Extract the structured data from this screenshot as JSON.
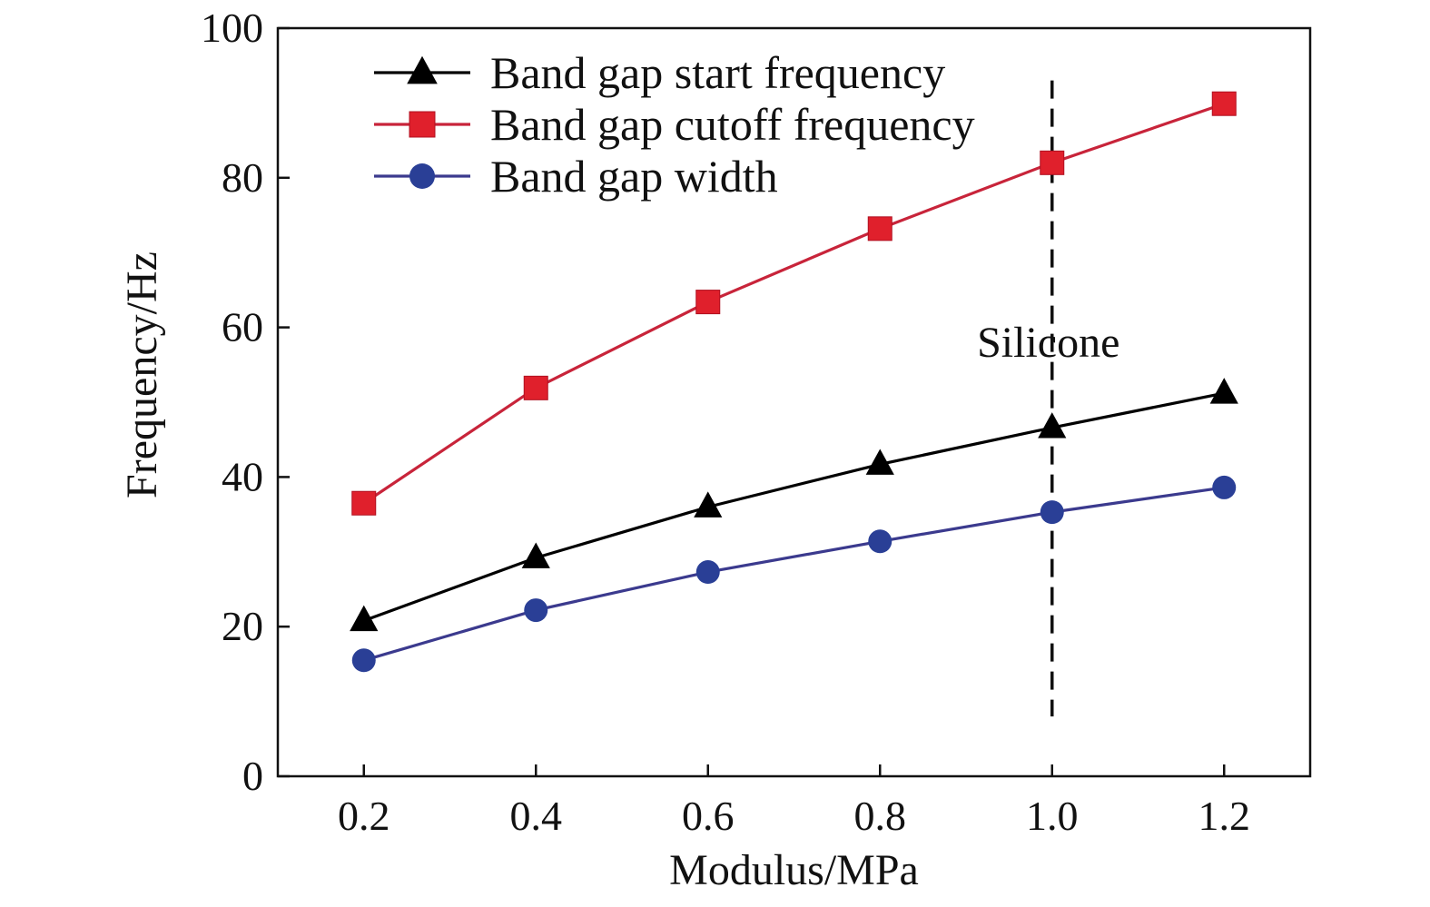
{
  "chart_data": {
    "type": "line",
    "title": "",
    "xlabel": "Modulus/MPa",
    "ylabel": "Frequency/Hz",
    "xlim": [
      0.1,
      1.3
    ],
    "ylim": [
      0,
      100
    ],
    "x": [
      0.2,
      0.4,
      0.6,
      0.8,
      1.0,
      1.2
    ],
    "x_tick_labels": [
      "0.2",
      "0.4",
      "0.6",
      "0.8",
      "1.0",
      "1.2"
    ],
    "y_ticks": [
      0,
      20,
      40,
      60,
      80,
      100
    ],
    "y_tick_labels": [
      "0",
      "20",
      "40",
      "60",
      "80",
      "100"
    ],
    "grid": false,
    "legend_position": "top-left",
    "series": [
      {
        "name": "Band gap start frequency",
        "marker": "triangle",
        "color": "#000000",
        "line_color": "#000000",
        "values": [
          20.8,
          29.2,
          36.0,
          41.7,
          46.6,
          51.2
        ]
      },
      {
        "name": "Band gap cutoff frequency",
        "marker": "square",
        "color": "#e0202c",
        "line_color": "#c8243a",
        "values": [
          36.5,
          51.9,
          63.4,
          73.2,
          82.0,
          89.9
        ]
      },
      {
        "name": "Band gap width",
        "marker": "circle",
        "color": "#2a3f96",
        "line_color": "#3b3a8e",
        "values": [
          15.5,
          22.2,
          27.3,
          31.4,
          35.3,
          38.6
        ]
      }
    ],
    "annotations": [
      {
        "type": "vertical-dashed-line",
        "x": 1.0,
        "y_range": [
          8,
          93
        ],
        "label": "Silicone",
        "label_y": 58
      }
    ]
  }
}
